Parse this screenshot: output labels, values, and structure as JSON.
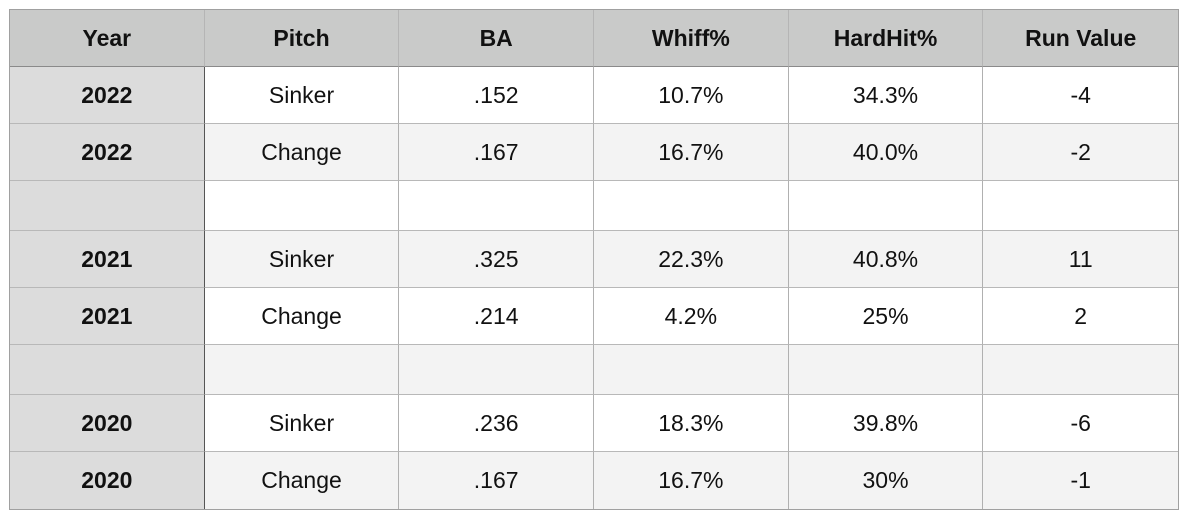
{
  "table": {
    "header": [
      "Year",
      "Pitch",
      "BA",
      "Whiff%",
      "HardHit%",
      "Run Value"
    ],
    "groups": [
      {
        "rows": [
          [
            "2022",
            "Sinker",
            ".152",
            "10.7%",
            "34.3%",
            "-4"
          ],
          [
            "2022",
            "Change",
            ".167",
            "16.7%",
            "40.0%",
            "-2"
          ]
        ]
      },
      {
        "rows": [
          [
            "2021",
            "Sinker",
            ".325",
            "22.3%",
            "40.8%",
            "11"
          ],
          [
            "2021",
            "Change",
            ".214",
            "4.2%",
            "25%",
            "2"
          ]
        ]
      },
      {
        "rows": [
          [
            "2020",
            "Sinker",
            ".236",
            "18.3%",
            "39.8%",
            "-6"
          ],
          [
            "2020",
            "Change",
            ".167",
            "16.7%",
            "30%",
            "-1"
          ]
        ]
      }
    ]
  }
}
